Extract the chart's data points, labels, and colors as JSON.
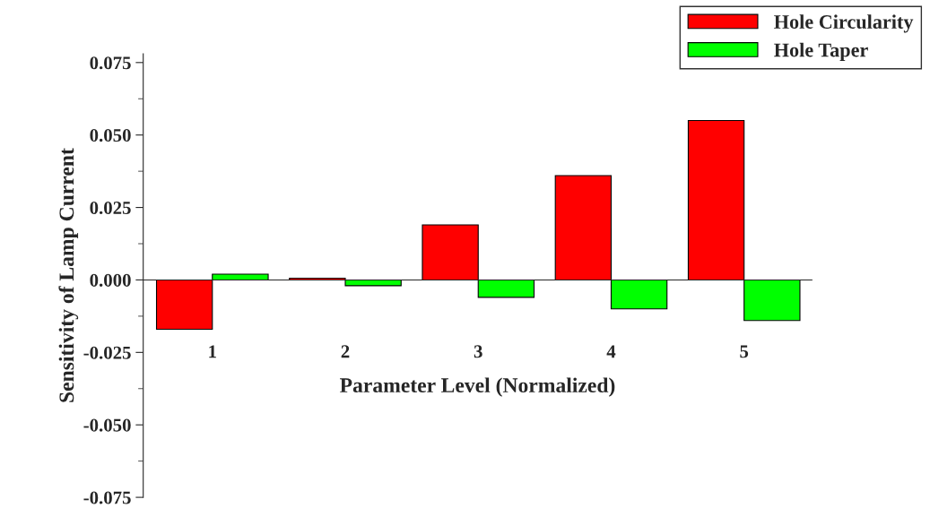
{
  "chart_data": {
    "type": "bar",
    "xlabel": "Parameter Level (Normalized)",
    "ylabel": "Sensitivity of Lamp Current",
    "categories": [
      "1",
      "2",
      "3",
      "4",
      "5"
    ],
    "series": [
      {
        "name": "Hole Circularity",
        "color": "#ff0000",
        "values": [
          -0.017,
          0.0006,
          0.019,
          0.036,
          0.055
        ]
      },
      {
        "name": "Hole Taper",
        "color": "#00ff00",
        "values": [
          0.002,
          -0.002,
          -0.006,
          -0.01,
          -0.014
        ]
      }
    ],
    "ylim": [
      -0.075,
      0.078
    ],
    "yticks": [
      {
        "value": -0.075,
        "label": "-0.075"
      },
      {
        "value": -0.05,
        "label": "-0.050"
      },
      {
        "value": -0.025,
        "label": "-0.025"
      },
      {
        "value": 0,
        "label": "0.000"
      },
      {
        "value": 0.025,
        "label": "0.025"
      },
      {
        "value": 0.05,
        "label": "0.050"
      },
      {
        "value": 0.075,
        "label": "0.075"
      }
    ],
    "legend": "top right"
  }
}
